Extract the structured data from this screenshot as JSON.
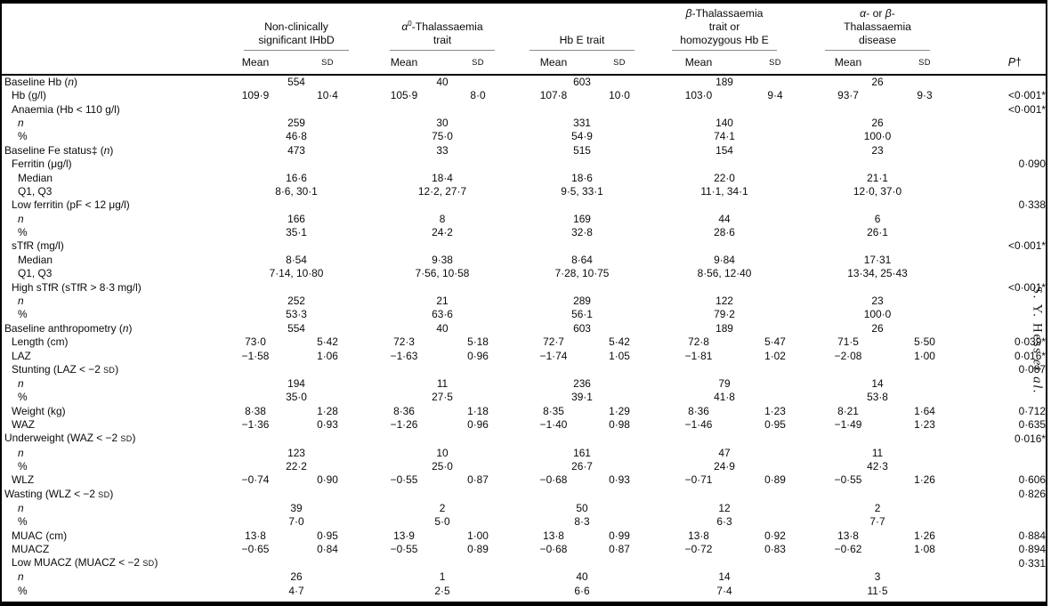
{
  "page": {
    "running_head": "S. Y. Hess <i>et al.</i>",
    "colors": {
      "text": "#000000",
      "frame": "#000000",
      "header_rule": "#8a8a8a"
    }
  },
  "table": {
    "groups": [
      {
        "label": "Non-clinically<br>significant IHbD"
      },
      {
        "label": "<i>α</i><sup>0</sup>-Thalassaemia<br>trait"
      },
      {
        "label": "Hb E trait"
      },
      {
        "label": "<i>β</i>-Thalassaemia<br>trait or<br>homozygous Hb E"
      },
      {
        "label": "<i>α</i>- or <i>β</i>-<br>Thalassaemia<br>disease"
      }
    ],
    "col_headers": {
      "mean": "Mean",
      "sd": "SD",
      "p": "<i>P</i>†"
    },
    "rows": [
      {
        "label": "Baseline Hb (<i>n</i>)",
        "indent": 0,
        "type": "span",
        "values": [
          "554",
          "40",
          "603",
          "189",
          "26"
        ],
        "p": ""
      },
      {
        "label": "Hb (g/l)",
        "indent": 1,
        "type": "pair",
        "values": [
          [
            "109·9",
            "10·4"
          ],
          [
            "105·9",
            "8·0"
          ],
          [
            "107·8",
            "10·0"
          ],
          [
            "103·0",
            "9·4"
          ],
          [
            "93·7",
            "9·3"
          ]
        ],
        "p": "<0·001*"
      },
      {
        "label": "Anaemia (Hb &lt; 110 g/l)",
        "indent": 1,
        "type": "label",
        "values": null,
        "p": "<0·001*"
      },
      {
        "label": "<i>n</i>",
        "indent": 2,
        "type": "span",
        "values": [
          "259",
          "30",
          "331",
          "140",
          "26"
        ],
        "p": ""
      },
      {
        "label": "%",
        "indent": 2,
        "type": "span",
        "values": [
          "46·8",
          "75·0",
          "54·9",
          "74·1",
          "100·0"
        ],
        "p": ""
      },
      {
        "label": "Baseline Fe status‡ (<i>n</i>)",
        "indent": 0,
        "type": "span",
        "values": [
          "473",
          "33",
          "515",
          "154",
          "23"
        ],
        "p": ""
      },
      {
        "label": "Ferritin (μg/l)",
        "indent": 1,
        "type": "label",
        "values": null,
        "p": "0·090"
      },
      {
        "label": "Median",
        "indent": 2,
        "type": "span",
        "values": [
          "16·6",
          "18·4",
          "18·6",
          "22·0",
          "21·1"
        ],
        "p": ""
      },
      {
        "label": "Q1, Q3",
        "indent": 2,
        "type": "span",
        "values": [
          "8·6, 30·1",
          "12·2, 27·7",
          "9·5, 33·1",
          "11·1, 34·1",
          "12·0, 37·0"
        ],
        "p": ""
      },
      {
        "label": "Low ferritin (pF &lt; 12 μg/l)",
        "indent": 1,
        "type": "label",
        "values": null,
        "p": "0·338"
      },
      {
        "label": "<i>n</i>",
        "indent": 2,
        "type": "span",
        "values": [
          "166",
          "8",
          "169",
          "44",
          "6"
        ],
        "p": ""
      },
      {
        "label": "%",
        "indent": 2,
        "type": "span",
        "values": [
          "35·1",
          "24·2",
          "32·8",
          "28·6",
          "26·1"
        ],
        "p": ""
      },
      {
        "label": "sTfR (mg/l)",
        "indent": 1,
        "type": "label",
        "values": null,
        "p": "<0·001*"
      },
      {
        "label": "Median",
        "indent": 2,
        "type": "span",
        "values": [
          "8·54",
          "9·38",
          "8·64",
          "9·84",
          "17·31"
        ],
        "p": ""
      },
      {
        "label": "Q1, Q3",
        "indent": 2,
        "type": "span",
        "values": [
          "7·14, 10·80",
          "7·56, 10·58",
          "7·28, 10·75",
          "8·56, 12·40",
          "13·34, 25·43"
        ],
        "p": ""
      },
      {
        "label": "High sTfR (sTfR &gt; 8·3 mg/l)",
        "indent": 1,
        "type": "label",
        "values": null,
        "p": "<0·001*"
      },
      {
        "label": "<i>n</i>",
        "indent": 2,
        "type": "span",
        "values": [
          "252",
          "21",
          "289",
          "122",
          "23"
        ],
        "p": ""
      },
      {
        "label": "%",
        "indent": 2,
        "type": "span",
        "values": [
          "53·3",
          "63·6",
          "56·1",
          "79·2",
          "100·0"
        ],
        "p": ""
      },
      {
        "label": "Baseline anthropometry (<i>n</i>)",
        "indent": 0,
        "type": "span",
        "values": [
          "554",
          "40",
          "603",
          "189",
          "26"
        ],
        "p": ""
      },
      {
        "label": "Length (cm)",
        "indent": 1,
        "type": "pair",
        "values": [
          [
            "73·0",
            "5·42"
          ],
          [
            "72·3",
            "5·18"
          ],
          [
            "72·7",
            "5·42"
          ],
          [
            "72·8",
            "5·47"
          ],
          [
            "71·5",
            "5·50"
          ]
        ],
        "p": "0·039*"
      },
      {
        "label": "LAZ",
        "indent": 1,
        "type": "pair",
        "values": [
          [
            "−1·58",
            "1·06"
          ],
          [
            "−1·63",
            "0·96"
          ],
          [
            "−1·74",
            "1·05"
          ],
          [
            "−1·81",
            "1·02"
          ],
          [
            "−2·08",
            "1·00"
          ]
        ],
        "p": "0·016*"
      },
      {
        "label": "Stunting (LAZ &lt; −2 <span class=\"sc\">SD</span>)",
        "indent": 1,
        "type": "label",
        "values": null,
        "p": "0·087"
      },
      {
        "label": "<i>n</i>",
        "indent": 2,
        "type": "span",
        "values": [
          "194",
          "11",
          "236",
          "79",
          "14"
        ],
        "p": ""
      },
      {
        "label": "%",
        "indent": 2,
        "type": "span",
        "values": [
          "35·0",
          "27·5",
          "39·1",
          "41·8",
          "53·8"
        ],
        "p": ""
      },
      {
        "label": "Weight (kg)",
        "indent": 1,
        "type": "pair",
        "values": [
          [
            "8·38",
            "1·28"
          ],
          [
            "8·36",
            "1·18"
          ],
          [
            "8·35",
            "1·29"
          ],
          [
            "8·36",
            "1·23"
          ],
          [
            "8·21",
            "1·64"
          ]
        ],
        "p": "0·712"
      },
      {
        "label": "WAZ",
        "indent": 1,
        "type": "pair",
        "values": [
          [
            "−1·36",
            "0·93"
          ],
          [
            "−1·26",
            "0·96"
          ],
          [
            "−1·40",
            "0·98"
          ],
          [
            "−1·46",
            "0·95"
          ],
          [
            "−1·49",
            "1·23"
          ]
        ],
        "p": "0·635"
      },
      {
        "label": "Underweight (WAZ &lt; −2 <span class=\"sc\">SD</span>)",
        "indent": 0,
        "type": "label",
        "values": null,
        "p": "0·016*"
      },
      {
        "label": "<i>n</i>",
        "indent": 2,
        "type": "span",
        "values": [
          "123",
          "10",
          "161",
          "47",
          "11"
        ],
        "p": ""
      },
      {
        "label": "%",
        "indent": 2,
        "type": "span",
        "values": [
          "22·2",
          "25·0",
          "26·7",
          "24·9",
          "42·3"
        ],
        "p": ""
      },
      {
        "label": "WLZ",
        "indent": 1,
        "type": "pair",
        "values": [
          [
            "−0·74",
            "0·90"
          ],
          [
            "−0·55",
            "0·87"
          ],
          [
            "−0·68",
            "0·93"
          ],
          [
            "−0·71",
            "0·89"
          ],
          [
            "−0·55",
            "1·26"
          ]
        ],
        "p": "0·606"
      },
      {
        "label": "Wasting (WLZ &lt; −2 <span class=\"sc\">SD</span>)",
        "indent": 0,
        "type": "label",
        "values": null,
        "p": "0·826"
      },
      {
        "label": "<i>n</i>",
        "indent": 2,
        "type": "span",
        "values": [
          "39",
          "2",
          "50",
          "12",
          "2"
        ],
        "p": ""
      },
      {
        "label": "%",
        "indent": 2,
        "type": "span",
        "values": [
          "7·0",
          "5·0",
          "8·3",
          "6·3",
          "7·7"
        ],
        "p": ""
      },
      {
        "label": "MUAC (cm)",
        "indent": 1,
        "type": "pair",
        "values": [
          [
            "13·8",
            "0·95"
          ],
          [
            "13·9",
            "1·00"
          ],
          [
            "13·8",
            "0·99"
          ],
          [
            "13·8",
            "0·92"
          ],
          [
            "13·8",
            "1·26"
          ]
        ],
        "p": "0·884"
      },
      {
        "label": "MUACZ",
        "indent": 1,
        "type": "pair",
        "values": [
          [
            "−0·65",
            "0·84"
          ],
          [
            "−0·55",
            "0·89"
          ],
          [
            "−0·68",
            "0·87"
          ],
          [
            "−0·72",
            "0·83"
          ],
          [
            "−0·62",
            "1·08"
          ]
        ],
        "p": "0·894"
      },
      {
        "label": "Low MUACZ (MUACZ &lt; −2 <span class=\"sc\">SD</span>)",
        "indent": 1,
        "type": "label",
        "values": null,
        "p": "0·331"
      },
      {
        "label": "<i>n</i>",
        "indent": 2,
        "type": "span",
        "values": [
          "26",
          "1",
          "40",
          "14",
          "3"
        ],
        "p": ""
      },
      {
        "label": "%",
        "indent": 2,
        "type": "span",
        "values": [
          "4·7",
          "2·5",
          "6·6",
          "7·4",
          "11·5"
        ],
        "p": ""
      }
    ]
  }
}
